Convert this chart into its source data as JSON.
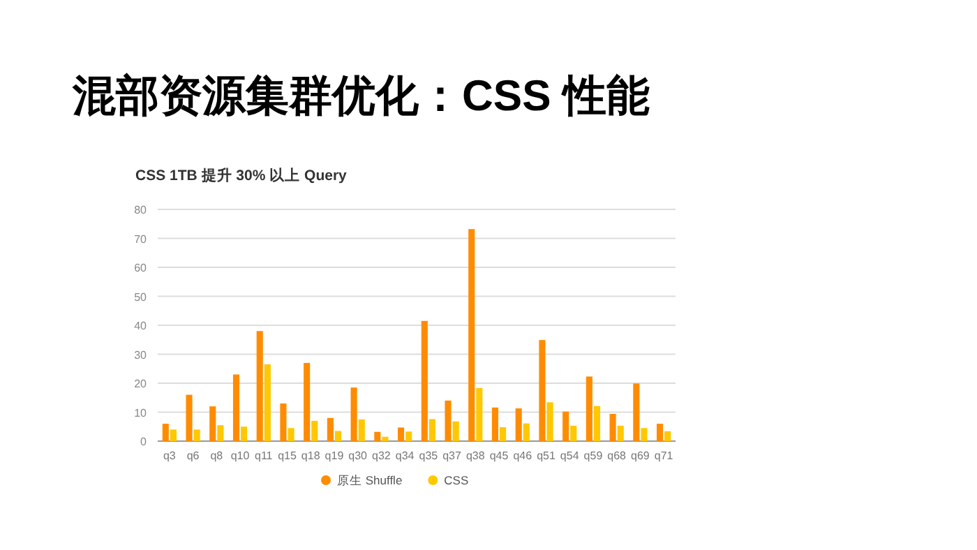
{
  "chart_data": {
    "type": "bar",
    "title": "混部资源集群优化：CSS 性能",
    "subtitle": "CSS 1TB 提升 30% 以上 Query",
    "categories": [
      "q3",
      "q6",
      "q8",
      "q10",
      "q11",
      "q15",
      "q18",
      "q19",
      "q30",
      "q32",
      "q34",
      "q35",
      "q37",
      "q38",
      "q45",
      "q46",
      "q51",
      "q54",
      "q59",
      "q68",
      "q69",
      "q71"
    ],
    "series": [
      {
        "name": "原生 Shuffle",
        "color": "#ff8c00",
        "values": [
          6,
          16,
          12,
          23,
          38,
          13,
          27,
          8,
          18.5,
          3.2,
          4.7,
          41.5,
          14,
          73.2,
          11.6,
          11.3,
          34.9,
          10.2,
          22.3,
          9.4,
          19.9,
          6
        ]
      },
      {
        "name": "CSS",
        "color": "#ffc800",
        "values": [
          4,
          4,
          5.5,
          5,
          26.5,
          4.5,
          7,
          3.5,
          7.5,
          1.5,
          3.3,
          7.6,
          6.8,
          18.3,
          4.8,
          6.1,
          13.4,
          5.3,
          12.1,
          5.3,
          4.5,
          3.4
        ]
      }
    ],
    "ylim": [
      0,
      80
    ],
    "yticks": [
      0,
      10,
      20,
      30,
      40,
      50,
      60,
      70,
      80
    ],
    "grid": "y",
    "legend": "bottom"
  }
}
